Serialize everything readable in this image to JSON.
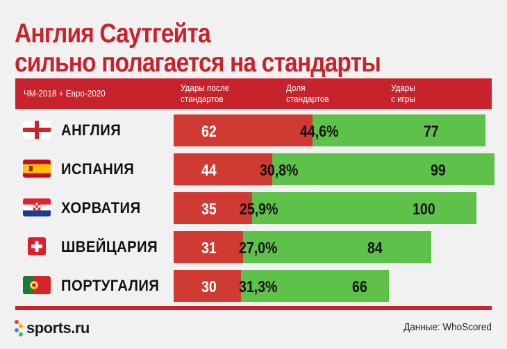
{
  "title": "Англия Саутгейта\nсильно полагается на стандарты",
  "header": {
    "caption": "ЧМ-2018 + Евро-2020",
    "col_set_pieces": "Удары после\nстандартов",
    "col_share": "Доля\nстандартов",
    "col_open_play": "Удары\nс игры"
  },
  "colors": {
    "brand_red": "#c8232c",
    "set_piece_bar": "#cf3b33",
    "open_play_bar": "#5ec14a",
    "background": "#f1f1f1"
  },
  "chart_data": {
    "type": "bar",
    "stacked": true,
    "orientation": "horizontal",
    "categories": [
      "АНГЛИЯ",
      "ИСПАНИЯ",
      "ХОРВАТИЯ",
      "ШВЕЙЦАРИЯ",
      "ПОРТУГАЛИЯ"
    ],
    "flags": [
      "england-flag-icon",
      "spain-flag-icon",
      "croatia-flag-icon",
      "switzerland-flag-icon",
      "portugal-flag-icon"
    ],
    "series": [
      {
        "name": "Удары после стандартов",
        "values": [
          62,
          44,
          35,
          31,
          30
        ],
        "color": "#cf3b33"
      },
      {
        "name": "Удары с игры",
        "values": [
          77,
          99,
          100,
          84,
          66
        ],
        "color": "#5ec14a"
      }
    ],
    "share_labels": [
      "44,6%",
      "30,8%",
      "25,9%",
      "27,0%",
      "31,3%"
    ],
    "share_values": [
      44.6,
      30.8,
      25.9,
      27.0,
      31.3
    ]
  },
  "footer": {
    "logo": "sports.ru",
    "source": "Данные: WhoScored"
  }
}
